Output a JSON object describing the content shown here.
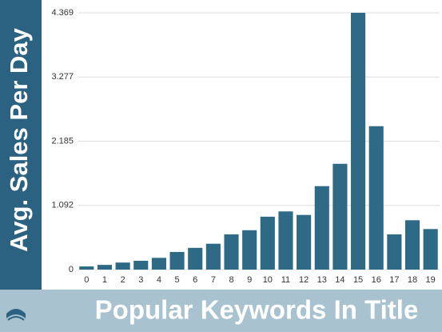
{
  "chart_data": {
    "type": "bar",
    "y_label": "Avg. Sales Per Day",
    "x_label": "Popular Keywords In Title",
    "categories": [
      "0",
      "1",
      "2",
      "3",
      "4",
      "5",
      "6",
      "7",
      "8",
      "9",
      "10",
      "11",
      "12",
      "13",
      "14",
      "15",
      "16",
      "17",
      "18",
      "19"
    ],
    "values": [
      0.054,
      0.08,
      0.12,
      0.15,
      0.2,
      0.3,
      0.37,
      0.44,
      0.6,
      0.67,
      0.9,
      0.99,
      0.93,
      1.42,
      1.8,
      4.369,
      2.44,
      0.6,
      0.84,
      0.69
    ],
    "color": "#2e6a86",
    "ylim": [
      0,
      4.369
    ],
    "yticks": [
      0,
      1.092,
      2.185,
      3.277,
      4.369
    ],
    "grid": true
  }
}
